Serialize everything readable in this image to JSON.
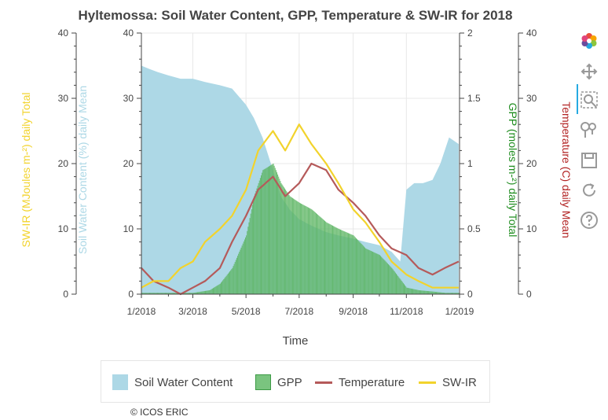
{
  "chart_data": {
    "type": "area",
    "title": "Hyltemossa: Soil Water Content, GPP, Temperature & SW-IR for 2018",
    "xlabel": "Time",
    "x_ticks": [
      "1/2018",
      "3/2018",
      "5/2018",
      "7/2018",
      "9/2018",
      "11/2018",
      "1/2019"
    ],
    "xlim": [
      "2018-01-01",
      "2019-01-01"
    ],
    "axes": [
      {
        "id": "swir",
        "side": "left",
        "label": "SW-IR (MJoules m-²) daily Total",
        "color": "#f2d32c",
        "ylim": [
          0,
          40
        ],
        "ticks": [
          "0",
          "10",
          "20",
          "30",
          "40"
        ]
      },
      {
        "id": "swc",
        "side": "left",
        "label": "Soil Water Content (%) daily Mean",
        "color": "#add8e6",
        "ylim": [
          0,
          40
        ],
        "ticks": [
          "0",
          "10",
          "20",
          "30",
          "40"
        ]
      },
      {
        "id": "gpp",
        "side": "right",
        "label": "GPP (moles m-²) daily Total",
        "color": "#1e8c1e",
        "ylim": [
          0,
          2
        ],
        "ticks": [
          "0",
          "0.5",
          "1",
          "1.5",
          "2"
        ]
      },
      {
        "id": "temp",
        "side": "right",
        "label": "Temperature (C) daily Mean",
        "color": "#b22222",
        "ylim": [
          0,
          40
        ],
        "ticks": [
          "0",
          "10",
          "20",
          "30",
          "40"
        ]
      }
    ],
    "series": [
      {
        "name": "Soil Water Content",
        "type": "area",
        "axis": "swc",
        "color": "#add8e6",
        "x": [
          "2018-01-01",
          "2018-01-10",
          "2018-01-20",
          "2018-02-01",
          "2018-02-15",
          "2018-03-01",
          "2018-03-15",
          "2018-04-01",
          "2018-04-15",
          "2018-05-01",
          "2018-05-10",
          "2018-05-20",
          "2018-06-01",
          "2018-06-10",
          "2018-06-20",
          "2018-07-01",
          "2018-07-15",
          "2018-08-01",
          "2018-08-15",
          "2018-09-01",
          "2018-09-15",
          "2018-10-01",
          "2018-10-15",
          "2018-10-25",
          "2018-11-01",
          "2018-11-10",
          "2018-11-20",
          "2018-12-01",
          "2018-12-10",
          "2018-12-20",
          "2018-12-31"
        ],
        "values": [
          35,
          34.5,
          34,
          33.5,
          33,
          33,
          32.5,
          32,
          31.5,
          29,
          27,
          24,
          19,
          15,
          13,
          11.5,
          10.5,
          9.5,
          9,
          8.5,
          8,
          7.5,
          6.5,
          5,
          16,
          17,
          17,
          17.5,
          20,
          24,
          23
        ]
      },
      {
        "name": "GPP",
        "type": "bar",
        "axis": "gpp",
        "color": "#3c9a45",
        "x": [
          "2018-01-01",
          "2018-02-01",
          "2018-03-01",
          "2018-03-20",
          "2018-04-01",
          "2018-04-15",
          "2018-05-01",
          "2018-05-10",
          "2018-05-20",
          "2018-06-01",
          "2018-06-10",
          "2018-06-20",
          "2018-07-01",
          "2018-07-15",
          "2018-08-01",
          "2018-08-15",
          "2018-09-01",
          "2018-09-15",
          "2018-10-01",
          "2018-10-15",
          "2018-11-01",
          "2018-11-15",
          "2018-12-01",
          "2018-12-15",
          "2018-12-31"
        ],
        "values": [
          0.01,
          0.01,
          0.01,
          0.03,
          0.08,
          0.2,
          0.45,
          0.75,
          0.95,
          1.0,
          0.85,
          0.75,
          0.7,
          0.65,
          0.55,
          0.5,
          0.45,
          0.35,
          0.3,
          0.2,
          0.05,
          0.03,
          0.02,
          0.01,
          0.01
        ]
      },
      {
        "name": "Temperature",
        "type": "line",
        "axis": "temp",
        "color": "#b55a5a",
        "x": [
          "2018-01-01",
          "2018-01-15",
          "2018-02-01",
          "2018-02-15",
          "2018-03-01",
          "2018-03-15",
          "2018-04-01",
          "2018-04-15",
          "2018-05-01",
          "2018-05-15",
          "2018-06-01",
          "2018-06-15",
          "2018-07-01",
          "2018-07-15",
          "2018-08-01",
          "2018-08-15",
          "2018-09-01",
          "2018-09-15",
          "2018-10-01",
          "2018-10-15",
          "2018-11-01",
          "2018-11-15",
          "2018-12-01",
          "2018-12-15",
          "2018-12-31"
        ],
        "values": [
          4,
          2,
          1,
          0,
          1,
          2,
          4,
          8,
          12,
          16,
          18,
          15,
          17,
          20,
          19,
          16,
          14,
          12,
          9,
          7,
          6,
          4,
          3,
          4,
          5
        ]
      },
      {
        "name": "SW-IR",
        "type": "line",
        "axis": "swir",
        "color": "#f2d32c",
        "x": [
          "2018-01-01",
          "2018-01-15",
          "2018-02-01",
          "2018-02-15",
          "2018-03-01",
          "2018-03-15",
          "2018-04-01",
          "2018-04-15",
          "2018-05-01",
          "2018-05-15",
          "2018-06-01",
          "2018-06-15",
          "2018-07-01",
          "2018-07-15",
          "2018-08-01",
          "2018-08-15",
          "2018-09-01",
          "2018-09-15",
          "2018-10-01",
          "2018-10-15",
          "2018-11-01",
          "2018-11-15",
          "2018-12-01",
          "2018-12-15",
          "2018-12-31"
        ],
        "values": [
          1,
          2,
          2,
          4,
          5,
          8,
          10,
          12,
          16,
          22,
          25,
          22,
          26,
          23,
          20,
          17,
          13,
          11,
          8,
          5,
          3,
          2,
          1,
          1,
          1
        ]
      }
    ],
    "grid": true,
    "legend_position": "bottom"
  },
  "legend": {
    "items": [
      "Soil Water Content",
      "GPP",
      "Temperature",
      "SW-IR"
    ]
  },
  "credit": "© ICOS ERIC",
  "toolbar": {
    "icons": [
      "bokeh-logo-icon",
      "pan-icon",
      "box-zoom-icon",
      "wheel-zoom-icon",
      "save-icon",
      "reset-icon",
      "help-icon"
    ]
  }
}
